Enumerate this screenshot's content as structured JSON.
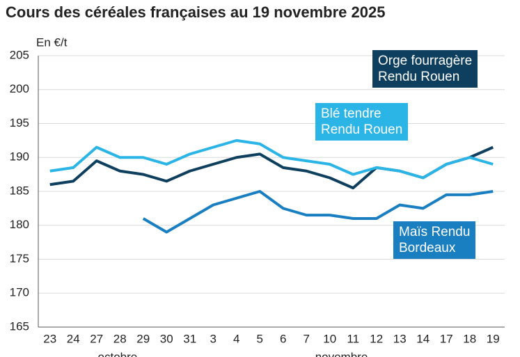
{
  "chart_data": {
    "type": "line",
    "title": "Cours des céréales françaises au 19 novembre 2025",
    "y_label": "En €/t",
    "categories": [
      "23",
      "24",
      "27",
      "28",
      "29",
      "30",
      "31",
      "3",
      "4",
      "5",
      "6",
      "7",
      "10",
      "11",
      "12",
      "13",
      "14",
      "17",
      "18",
      "19"
    ],
    "months": [
      "octobre",
      "novembre"
    ],
    "ylim": [
      165,
      205
    ],
    "yticks": [
      165,
      170,
      175,
      180,
      185,
      190,
      195,
      200,
      205
    ],
    "grid": true,
    "series": [
      {
        "name": "Orge fourragère\nRendu Rouen",
        "color": "#0e3f5e",
        "values": [
          186,
          186.5,
          189.5,
          188,
          187.5,
          186.5,
          188,
          189,
          190,
          190.5,
          188.5,
          188,
          187,
          185.5,
          188.5,
          188,
          187,
          189,
          190,
          191.5
        ]
      },
      {
        "name": "Blé tendre\nRendu Rouen",
        "color": "#2bb4e6",
        "values": [
          188,
          188.5,
          191.5,
          190,
          190,
          189,
          190.5,
          191.5,
          192.5,
          192,
          190,
          189.5,
          189,
          187.5,
          188.5,
          188,
          187,
          189,
          190,
          189
        ]
      },
      {
        "name": "Maïs Rendu\nBordeaux",
        "color": "#1a7fc1",
        "values": [
          null,
          null,
          null,
          null,
          181,
          179,
          181,
          183,
          184,
          185,
          182.5,
          181.5,
          181.5,
          181,
          181,
          183,
          182.5,
          184.5,
          184.5,
          185
        ]
      }
    ]
  }
}
